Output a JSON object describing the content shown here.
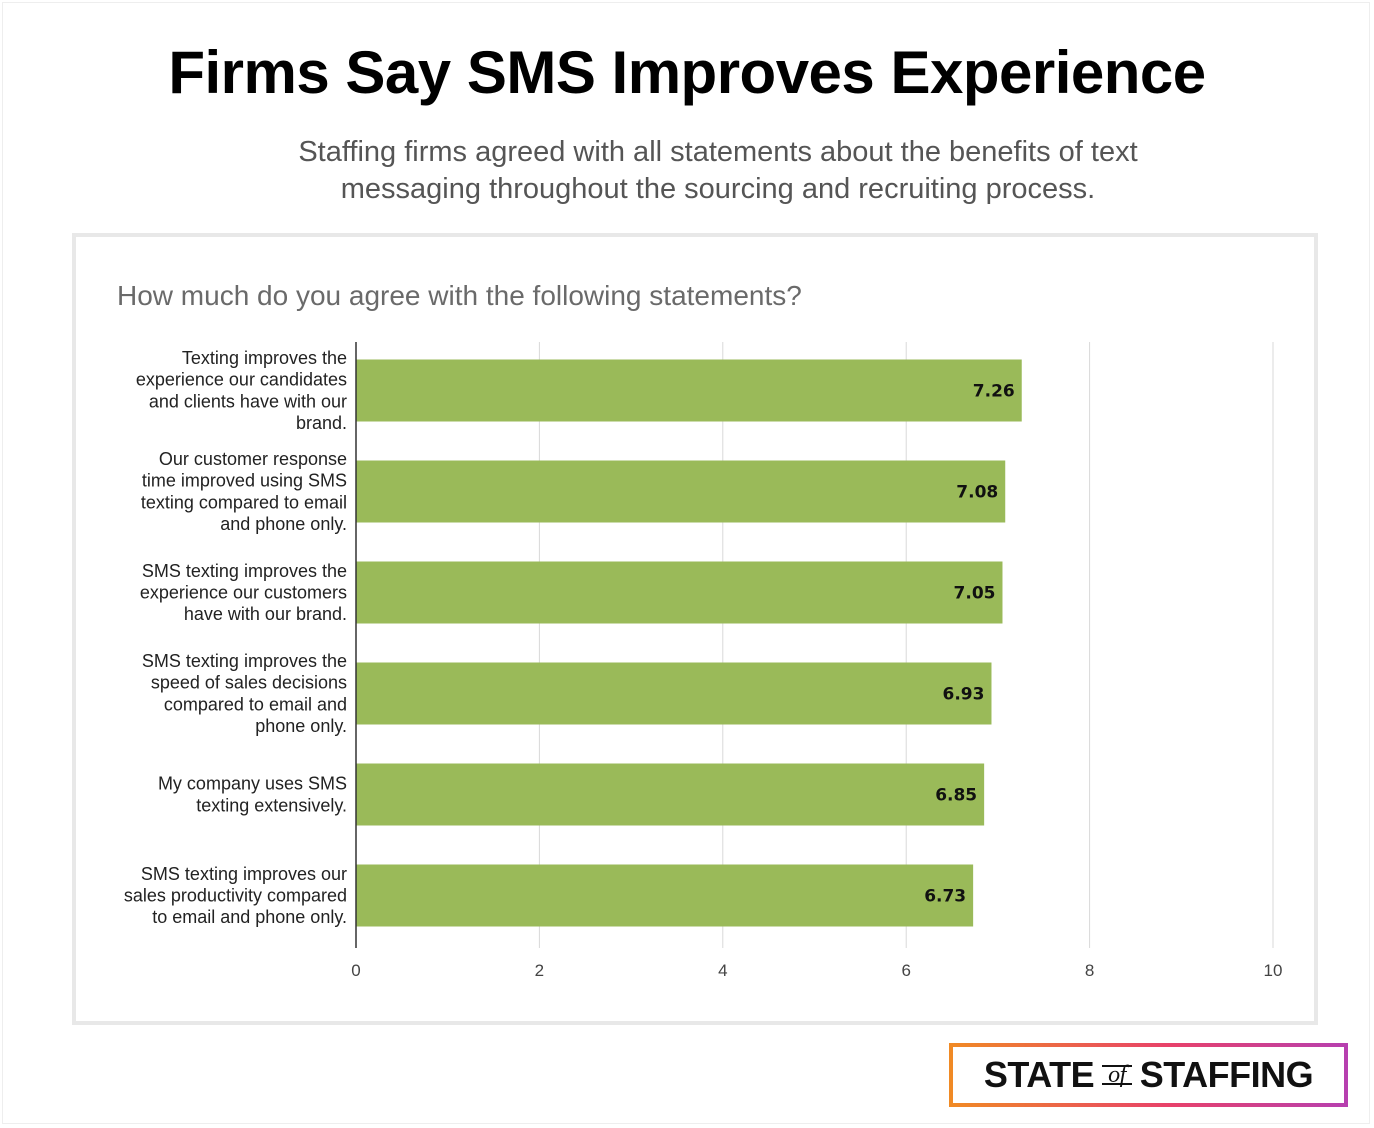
{
  "title": "Firms Say SMS Improves Experience",
  "subtitle": "Staffing firms agreed with all statements about the benefits of text messaging throughout the sourcing and recruiting process.",
  "logo": {
    "left": "STATE",
    "mid": "of",
    "right": "STAFFING"
  },
  "colors": {
    "bar": "#9aba59",
    "grid": "#d9d9d9",
    "axis": "#333333",
    "logo_gradient": [
      "#f08a24",
      "#e8416a",
      "#b63fb0"
    ]
  },
  "chart_data": {
    "type": "bar",
    "orientation": "horizontal",
    "title": "How much do you agree with the following statements?",
    "categories": [
      [
        "Texting improves the",
        "experience our candidates",
        "and clients have with our",
        "brand."
      ],
      [
        "Our customer response",
        "time improved using SMS",
        "texting compared to email",
        "and phone only."
      ],
      [
        "SMS texting improves the",
        "experience our customers",
        "have with our brand."
      ],
      [
        "SMS texting improves the",
        "speed of sales decisions",
        "compared to email and",
        "phone only."
      ],
      [
        "My company uses SMS",
        "texting extensively."
      ],
      [
        "SMS texting improves our",
        "sales productivity compared",
        "to email and phone only."
      ]
    ],
    "values": [
      7.26,
      7.08,
      7.05,
      6.93,
      6.85,
      6.73
    ],
    "xlim": [
      0,
      10
    ],
    "xticks": [
      0,
      2,
      4,
      6,
      8,
      10
    ],
    "grid": true,
    "data_labels": true
  }
}
